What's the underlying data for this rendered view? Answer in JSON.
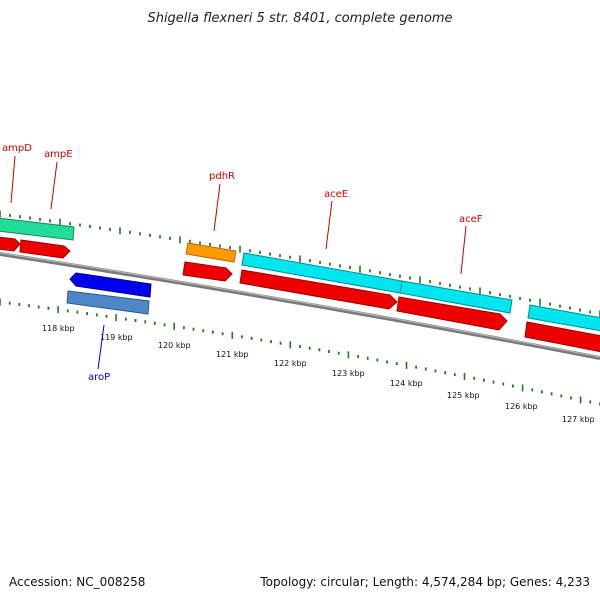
{
  "title": "Shigella flexneri 5 str. 8401, complete genome",
  "footer": {
    "accession": "Accession: NC_008258",
    "summary": "Topology: circular; Length: 4,574,284 bp; Genes: 4,233"
  },
  "colors": {
    "backbone": "#7a7a7a",
    "tick": "#1f7a1f",
    "label_forward": "#cc0000",
    "label_reverse": "#0000cc",
    "leader_forward": "#cc0000",
    "leader_reverse": "#0000cc"
  },
  "scale": {
    "unit": "kbp",
    "ticks": [
      {
        "label": "118 kbp"
      },
      {
        "label": "119 kbp"
      },
      {
        "label": "120 kbp"
      },
      {
        "label": "121 kbp"
      },
      {
        "label": "122 kbp"
      },
      {
        "label": "123 kbp"
      },
      {
        "label": "124 kbp"
      },
      {
        "label": "125 kbp"
      },
      {
        "label": "126 kbp"
      },
      {
        "label": "127 kbp"
      }
    ]
  },
  "labels": [
    {
      "text": "ampD",
      "strand": "forward"
    },
    {
      "text": "ampE",
      "strand": "forward"
    },
    {
      "text": "pdhR",
      "strand": "forward"
    },
    {
      "text": "aceE",
      "strand": "forward"
    },
    {
      "text": "aceF",
      "strand": "forward"
    },
    {
      "text": "aroP",
      "strand": "reverse"
    }
  ]
}
